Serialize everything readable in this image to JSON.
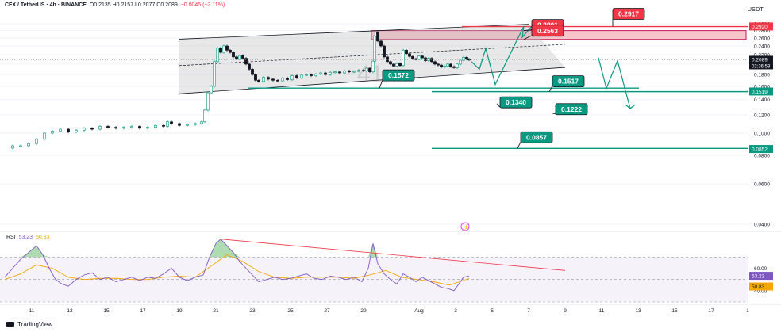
{
  "header": {
    "symbol": "CFX / TetherUS · 4h · BINANCE",
    "ohlc": "O0.2135  H0.2157  L0.2077  C0.2089",
    "change": "−0.0045 (−2.11%)",
    "currency": "USDT"
  },
  "rsi": {
    "label": "RSI",
    "value": "53.23",
    "ma": "50.83"
  },
  "branding": "TradingView",
  "colors": {
    "up": "#089981",
    "down": "#131722",
    "resistance": "#f23645",
    "support": "#089981",
    "rsi_line": "#7e57c2",
    "rsi_ma": "#f7a600",
    "channel": "#c8c8c8"
  },
  "chart_data": {
    "type": "candlestick",
    "interval": "4h",
    "scale": "log",
    "ylim": [
      0.04,
      0.3
    ],
    "y_ticks": [
      "0.3000",
      "0.2800",
      "0.2600",
      "0.2400",
      "0.2200",
      "0.2000",
      "0.1800",
      "0.1600",
      "0.1400",
      "0.1200",
      "0.1000",
      "0.0800",
      "0.0600",
      "0.0400"
    ],
    "x_ticks": [
      "11",
      "13",
      "15",
      "17",
      "19",
      "21",
      "23",
      "25",
      "27",
      "29",
      "Aug",
      "3",
      "5",
      "7",
      "9",
      "11",
      "13",
      "15",
      "17",
      "1"
    ],
    "last_price": "0.2089",
    "countdown": "02:36:59",
    "price_path": [
      [
        0,
        0.086
      ],
      [
        10,
        0.088
      ],
      [
        20,
        0.088
      ],
      [
        30,
        0.09
      ],
      [
        40,
        0.094
      ],
      [
        50,
        0.1
      ],
      [
        60,
        0.102
      ],
      [
        70,
        0.104
      ],
      [
        80,
        0.101
      ],
      [
        90,
        0.103
      ],
      [
        100,
        0.105
      ],
      [
        110,
        0.104
      ],
      [
        120,
        0.107
      ],
      [
        130,
        0.106
      ],
      [
        140,
        0.105
      ],
      [
        150,
        0.106
      ],
      [
        160,
        0.107
      ],
      [
        170,
        0.105
      ],
      [
        180,
        0.106
      ],
      [
        190,
        0.108
      ],
      [
        200,
        0.107
      ],
      [
        205,
        0.112
      ],
      [
        210,
        0.11
      ],
      [
        220,
        0.108
      ],
      [
        230,
        0.109
      ],
      [
        240,
        0.11
      ],
      [
        248,
        0.112
      ],
      [
        252,
        0.126
      ],
      [
        256,
        0.15
      ],
      [
        260,
        0.16
      ],
      [
        264,
        0.205
      ],
      [
        268,
        0.235
      ],
      [
        272,
        0.225
      ],
      [
        276,
        0.24
      ],
      [
        280,
        0.23
      ],
      [
        284,
        0.225
      ],
      [
        288,
        0.215
      ],
      [
        292,
        0.21
      ],
      [
        296,
        0.218
      ],
      [
        300,
        0.212
      ],
      [
        304,
        0.2
      ],
      [
        308,
        0.19
      ],
      [
        312,
        0.18
      ],
      [
        316,
        0.17
      ],
      [
        320,
        0.168
      ],
      [
        326,
        0.175
      ],
      [
        332,
        0.172
      ],
      [
        338,
        0.17
      ],
      [
        344,
        0.169
      ],
      [
        350,
        0.174
      ],
      [
        356,
        0.171
      ],
      [
        362,
        0.178
      ],
      [
        368,
        0.174
      ],
      [
        374,
        0.179
      ],
      [
        380,
        0.18
      ],
      [
        386,
        0.178
      ],
      [
        392,
        0.181
      ],
      [
        398,
        0.183
      ],
      [
        404,
        0.18
      ],
      [
        410,
        0.184
      ],
      [
        416,
        0.185
      ],
      [
        422,
        0.183
      ],
      [
        428,
        0.187
      ],
      [
        434,
        0.185
      ],
      [
        440,
        0.186
      ],
      [
        446,
        0.188
      ],
      [
        452,
        0.187
      ],
      [
        456,
        0.192
      ],
      [
        460,
        0.185
      ],
      [
        464,
        0.206
      ],
      [
        466,
        0.265
      ],
      [
        468,
        0.275
      ],
      [
        470,
        0.252
      ],
      [
        474,
        0.24
      ],
      [
        478,
        0.215
      ],
      [
        482,
        0.205
      ],
      [
        486,
        0.2
      ],
      [
        490,
        0.196
      ],
      [
        494,
        0.201
      ],
      [
        498,
        0.197
      ],
      [
        502,
        0.23
      ],
      [
        506,
        0.222
      ],
      [
        510,
        0.216
      ],
      [
        514,
        0.211
      ],
      [
        518,
        0.21
      ],
      [
        522,
        0.217
      ],
      [
        526,
        0.213
      ],
      [
        530,
        0.207
      ],
      [
        534,
        0.212
      ],
      [
        538,
        0.205
      ],
      [
        542,
        0.2
      ],
      [
        546,
        0.198
      ],
      [
        550,
        0.194
      ],
      [
        554,
        0.196
      ],
      [
        558,
        0.2
      ],
      [
        562,
        0.195
      ],
      [
        566,
        0.193
      ],
      [
        570,
        0.2
      ],
      [
        574,
        0.208
      ],
      [
        578,
        0.214
      ],
      [
        582,
        0.21
      ],
      [
        585,
        0.2089
      ]
    ],
    "annotations": {
      "resistance_levels": [
        "0.2917",
        "0.2801",
        "0.2563"
      ],
      "support_levels": [
        "0.1572",
        "0.1517",
        "0.1340",
        "0.1222",
        "0.0857"
      ],
      "axis_price_tags": [
        {
          "label": "0.2920",
          "kind": "resistance"
        },
        {
          "label": "0.1519",
          "kind": "support"
        },
        {
          "label": "0.0852",
          "kind": "support"
        }
      ],
      "resistance_zone": [
        "0.2563",
        "0.2801"
      ],
      "support_zone": [
        "0.1222",
        "0.1340"
      ],
      "watermark": "41"
    },
    "rsi_series": {
      "ylim": [
        30,
        90
      ],
      "y_ticks": [
        "60.00",
        "40.00"
      ],
      "rsi_value": "53.23",
      "ma_value": "50.83",
      "line": [
        [
          0,
          52
        ],
        [
          10,
          60
        ],
        [
          20,
          68
        ],
        [
          30,
          74
        ],
        [
          40,
          80
        ],
        [
          48,
          72
        ],
        [
          56,
          60
        ],
        [
          64,
          50
        ],
        [
          72,
          46
        ],
        [
          80,
          44
        ],
        [
          90,
          50
        ],
        [
          100,
          54
        ],
        [
          110,
          56
        ],
        [
          120,
          50
        ],
        [
          130,
          52
        ],
        [
          140,
          48
        ],
        [
          150,
          50
        ],
        [
          160,
          52
        ],
        [
          170,
          49
        ],
        [
          180,
          52
        ],
        [
          190,
          51
        ],
        [
          200,
          55
        ],
        [
          210,
          60
        ],
        [
          220,
          52
        ],
        [
          230,
          49
        ],
        [
          240,
          52
        ],
        [
          250,
          54
        ],
        [
          258,
          70
        ],
        [
          266,
          82
        ],
        [
          272,
          86
        ],
        [
          280,
          80
        ],
        [
          288,
          74
        ],
        [
          296,
          66
        ],
        [
          304,
          60
        ],
        [
          312,
          54
        ],
        [
          320,
          48
        ],
        [
          330,
          50
        ],
        [
          340,
          52
        ],
        [
          350,
          50
        ],
        [
          360,
          51
        ],
        [
          370,
          53
        ],
        [
          380,
          55
        ],
        [
          390,
          51
        ],
        [
          400,
          50
        ],
        [
          410,
          53
        ],
        [
          420,
          52
        ],
        [
          430,
          50
        ],
        [
          440,
          52
        ],
        [
          450,
          48
        ],
        [
          458,
          60
        ],
        [
          464,
          82
        ],
        [
          470,
          64
        ],
        [
          478,
          55
        ],
        [
          486,
          50
        ],
        [
          494,
          46
        ],
        [
          502,
          55
        ],
        [
          510,
          52
        ],
        [
          518,
          48
        ],
        [
          526,
          52
        ],
        [
          534,
          49
        ],
        [
          542,
          46
        ],
        [
          550,
          43
        ],
        [
          558,
          42
        ],
        [
          566,
          40
        ],
        [
          574,
          48
        ],
        [
          578,
          52
        ],
        [
          585,
          53
        ]
      ],
      "ma": [
        [
          0,
          50
        ],
        [
          20,
          55
        ],
        [
          40,
          63
        ],
        [
          60,
          60
        ],
        [
          80,
          52
        ],
        [
          100,
          50
        ],
        [
          120,
          51
        ],
        [
          140,
          51
        ],
        [
          160,
          50
        ],
        [
          180,
          50
        ],
        [
          200,
          52
        ],
        [
          220,
          53
        ],
        [
          240,
          52
        ],
        [
          260,
          62
        ],
        [
          280,
          72
        ],
        [
          300,
          66
        ],
        [
          320,
          57
        ],
        [
          340,
          52
        ],
        [
          360,
          51
        ],
        [
          380,
          52
        ],
        [
          400,
          52
        ],
        [
          420,
          52
        ],
        [
          440,
          51
        ],
        [
          460,
          54
        ],
        [
          480,
          58
        ],
        [
          500,
          52
        ],
        [
          520,
          50
        ],
        [
          540,
          48
        ],
        [
          560,
          45
        ],
        [
          585,
          50.83
        ]
      ]
    }
  }
}
